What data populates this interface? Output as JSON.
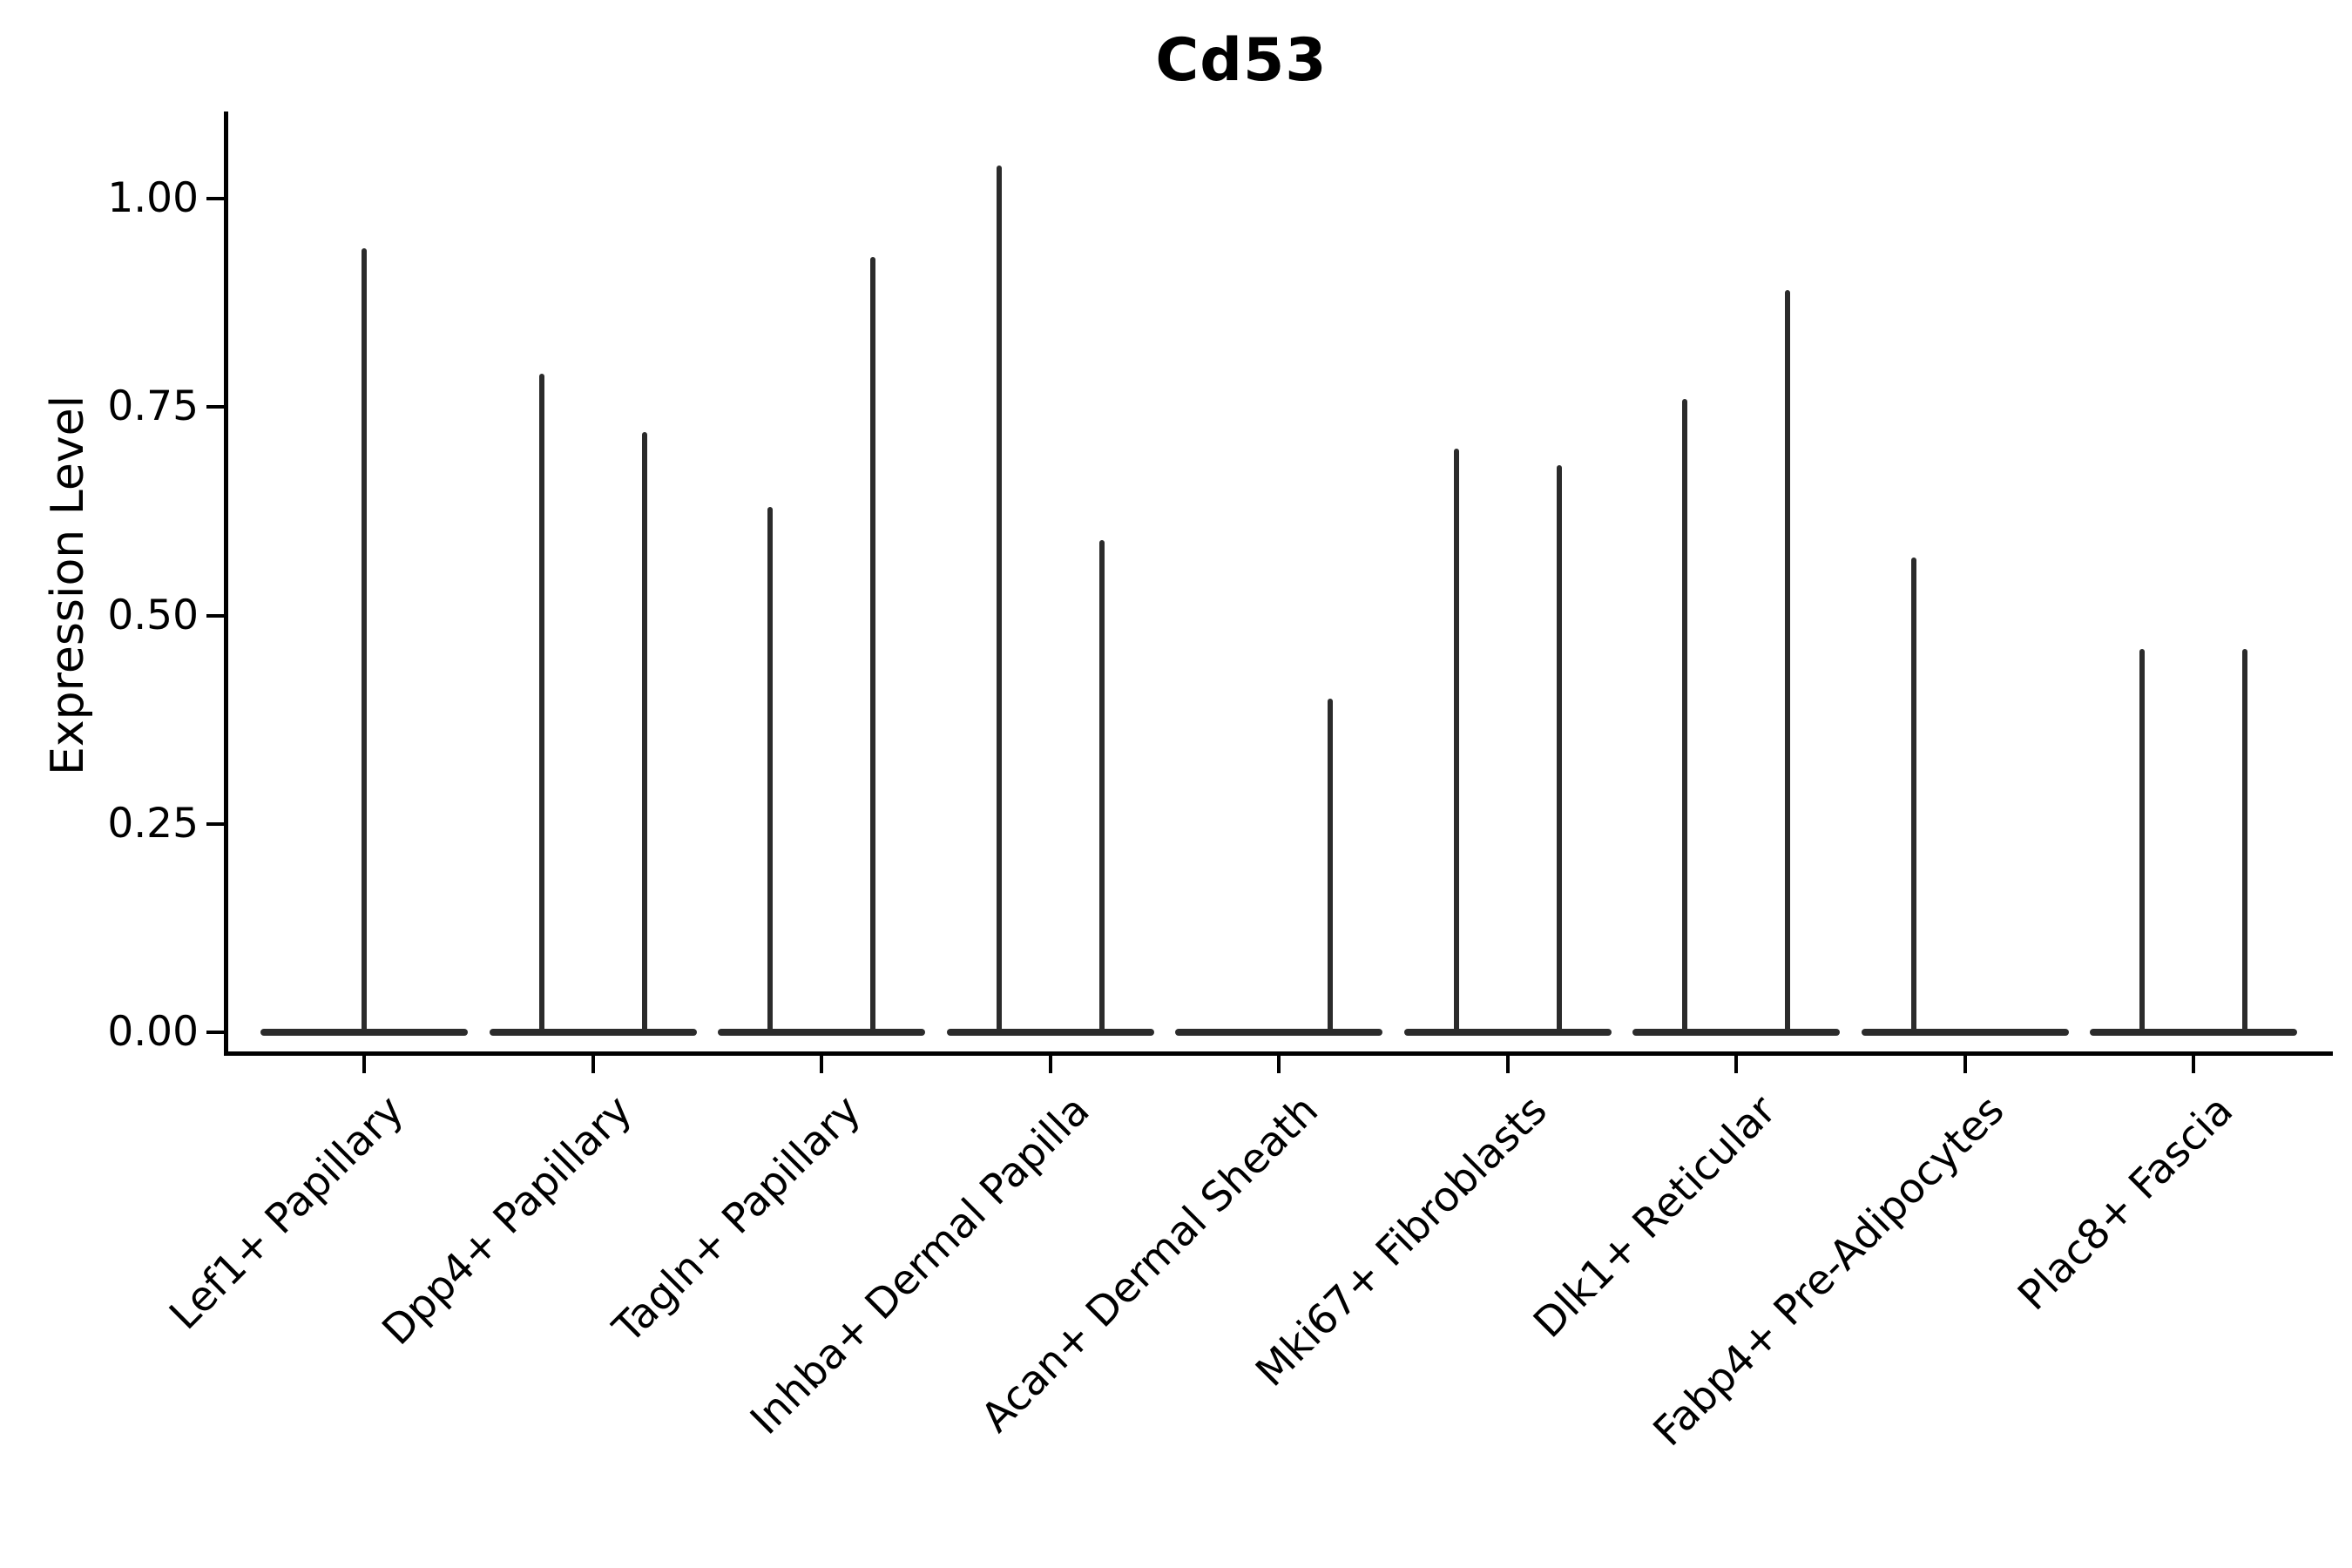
{
  "title": "Cd53",
  "ylabel": "Expression Level",
  "colors": {
    "background": "#ffffff",
    "violin": "#2b2b2b",
    "axis": "#000000",
    "text": "#000000"
  },
  "chart_data": {
    "type": "violin",
    "title": "Cd53",
    "xlabel": "",
    "ylabel": "Expression Level",
    "ylim": [
      -0.03,
      1.1
    ],
    "grid": false,
    "legend": false,
    "yticks": [
      {
        "label": "0.00",
        "value": 0.0
      },
      {
        "label": "0.25",
        "value": 0.25
      },
      {
        "label": "0.50",
        "value": 0.5
      },
      {
        "label": "0.75",
        "value": 0.75
      },
      {
        "label": "1.00",
        "value": 1.0
      }
    ],
    "categories": [
      {
        "label": "Lef1+ Papillary",
        "violins": [
          {
            "position": "center",
            "max": 0.94
          }
        ]
      },
      {
        "label": "Dpp4+ Papillary",
        "violins": [
          {
            "position": "left",
            "max": 0.79
          },
          {
            "position": "right",
            "max": 0.72
          }
        ]
      },
      {
        "label": "Tagln+ Papillary",
        "violins": [
          {
            "position": "left",
            "max": 0.63
          },
          {
            "position": "right",
            "max": 0.93
          }
        ]
      },
      {
        "label": "Inhba+ Dermal Papilla",
        "violins": [
          {
            "position": "left",
            "max": 1.04
          },
          {
            "position": "right",
            "max": 0.59
          }
        ]
      },
      {
        "label": "Acan+ Dermal Sheath",
        "violins": [
          {
            "position": "left",
            "max": 0.0
          },
          {
            "position": "right",
            "max": 0.4
          }
        ]
      },
      {
        "label": "Mki67+ Fibroblasts",
        "violins": [
          {
            "position": "left",
            "max": 0.7
          },
          {
            "position": "right",
            "max": 0.68
          }
        ]
      },
      {
        "label": "Dlk1+ Reticular",
        "violins": [
          {
            "position": "left",
            "max": 0.76
          },
          {
            "position": "right",
            "max": 0.89
          }
        ]
      },
      {
        "label": "Fabp4+ Pre-Adipocytes",
        "violins": [
          {
            "position": "left",
            "max": 0.57
          },
          {
            "position": "right",
            "max": 0.0
          }
        ]
      },
      {
        "label": "Plac8+ Fascia",
        "violins": [
          {
            "position": "left",
            "max": 0.46
          },
          {
            "position": "right",
            "max": 0.46
          }
        ]
      }
    ]
  }
}
